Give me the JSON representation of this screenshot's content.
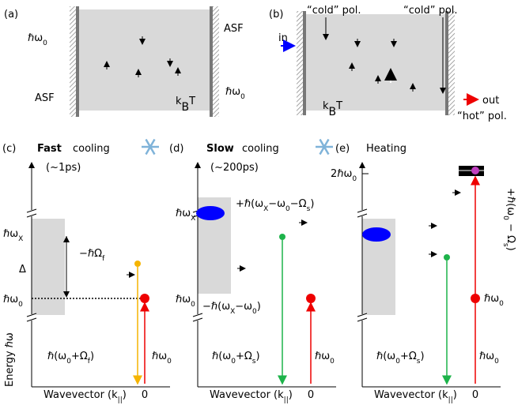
{
  "panel_a": {
    "label": "(a)",
    "pump_left": [
      "ℏω",
      "0"
    ],
    "asf_right": "ASF",
    "pump_right": [
      "ℏω",
      "0"
    ],
    "asf_left": "ASF",
    "temperature": [
      "k",
      "B",
      "T"
    ]
  },
  "panel_b": {
    "label": "(b)",
    "cold_left": "“cold” pol.",
    "cold_right": "“cold” pol.",
    "in": "in",
    "out": "out",
    "hot": "“hot” pol.",
    "temperature": [
      "k",
      "B",
      "T"
    ]
  },
  "panel_c": {
    "label": "(c)",
    "title_bold": "Fast",
    "title_rest": "cooling",
    "time": "(~1ps)",
    "exciton_level": [
      "ℏω",
      "X"
    ],
    "pump_level": [
      "ℏω",
      "0"
    ],
    "gap": "Δ",
    "phonon": [
      "−ℏΩ",
      "f"
    ],
    "emission": [
      "ℏ(ω",
      "0",
      "+Ω",
      "f",
      ")"
    ],
    "pump": [
      "ℏω",
      "0"
    ],
    "y_axis": "Energy ℏω",
    "x_axis": [
      "Wavevector (k",
      "||",
      ")"
    ],
    "k_zero": "0"
  },
  "panel_d": {
    "label": "(d)",
    "title_bold": "Slow",
    "title_rest": "cooling",
    "time": "(~200ps)",
    "exciton_level": [
      "ℏω",
      "X"
    ],
    "pump_level": [
      "ℏω",
      "0"
    ],
    "phonon_up": [
      "+ℏ(ω",
      "X",
      "−ω",
      "0",
      "−Ω",
      "s",
      ")"
    ],
    "phonon_down": [
      "−ℏ(ω",
      "X",
      "−ω",
      "0",
      ")"
    ],
    "emission": [
      "ℏ(ω",
      "0",
      "+Ω",
      "s",
      ")"
    ],
    "pump": [
      "ℏω",
      "0"
    ],
    "x_axis": [
      "Wavevector (k",
      "||",
      ")"
    ],
    "k_zero": "0"
  },
  "panel_e": {
    "label": "(e)",
    "title": "Heating",
    "two_pump_level": [
      "2ℏω",
      "0"
    ],
    "phonon": [
      "+ℏ(ω",
      "0",
      " − Ω",
      "s",
      ")"
    ],
    "pump_level": [
      "ℏω",
      "0"
    ],
    "emission": [
      "ℏ(ω",
      "0",
      "+Ω",
      "s",
      ")"
    ],
    "pump": [
      "ℏω",
      "0"
    ],
    "x_axis": [
      "Wavevector (k",
      "||",
      ")"
    ],
    "k_zero": "0"
  }
}
